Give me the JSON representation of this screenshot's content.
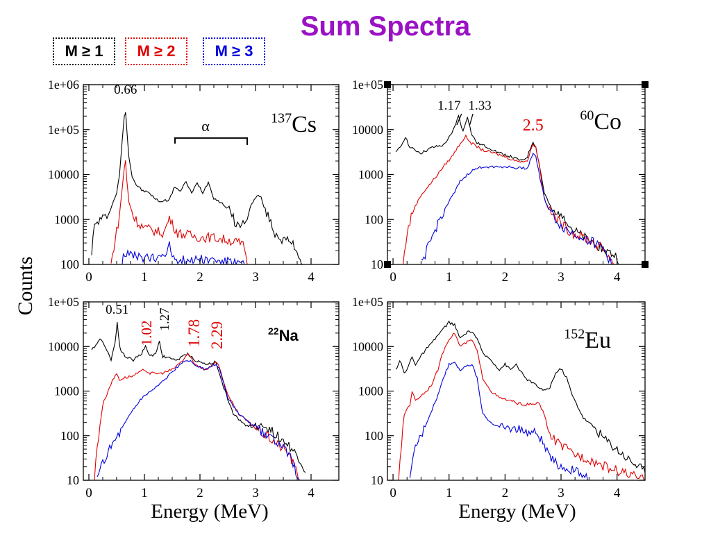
{
  "title": "Sum Spectra",
  "legend": [
    {
      "label": "M ≥ 1",
      "color": "#000000"
    },
    {
      "label": "M ≥ 2",
      "color": "#e00000"
    },
    {
      "label": "M ≥ 3",
      "color": "#0000dd"
    }
  ],
  "ylabel": "Counts",
  "xlabel": "Energy (MeV)",
  "chart_data": [
    {
      "type": "line",
      "scale": "log",
      "isotope_mass": "137",
      "isotope": "Cs",
      "xlim": [
        -0.1,
        4.5
      ],
      "ylim": [
        100,
        1000000
      ],
      "xticks": [
        "0",
        "1",
        "2",
        "3",
        "4"
      ],
      "yticks": [
        "100",
        "1000",
        "10000",
        "1e+05",
        "1e+06"
      ],
      "annotations": [
        {
          "text": "0.66",
          "x": 0.66,
          "color": "#000000"
        },
        {
          "text": "α",
          "x": 2.2,
          "color": "#000000"
        }
      ],
      "series": [
        {
          "color": "#000000",
          "x": [
            0.05,
            0.1,
            0.2,
            0.3,
            0.4,
            0.5,
            0.55,
            0.6,
            0.64,
            0.66,
            0.68,
            0.72,
            0.78,
            0.85,
            0.95,
            1.1,
            1.2,
            1.3,
            1.45,
            1.55,
            1.65,
            1.75,
            1.85,
            1.95,
            2.05,
            2.15,
            2.25,
            2.35,
            2.5,
            2.65,
            2.75,
            2.85,
            2.95,
            3.05,
            3.1,
            3.15,
            3.25,
            3.35,
            3.5,
            3.65,
            3.75,
            3.85
          ],
          "y": [
            200,
            700,
            1000,
            1100,
            1800,
            4000,
            9000,
            60000,
            200000,
            250000,
            120000,
            25000,
            9000,
            6000,
            4500,
            3800,
            2800,
            2500,
            2800,
            5500,
            4200,
            7000,
            3800,
            6500,
            4000,
            6800,
            3000,
            2500,
            1800,
            800,
            700,
            1200,
            2500,
            3500,
            3000,
            2000,
            1000,
            500,
            350,
            300,
            200,
            100
          ]
        },
        {
          "color": "#e00000",
          "x": [
            0.4,
            0.45,
            0.55,
            0.6,
            0.64,
            0.66,
            0.68,
            0.72,
            0.8,
            0.9,
            1.0,
            1.1,
            1.2,
            1.35,
            1.45,
            1.5,
            1.6,
            1.8,
            2.0,
            2.2,
            2.5,
            2.7,
            2.8,
            2.85
          ],
          "y": [
            100,
            250,
            1200,
            5000,
            15000,
            20000,
            8000,
            2500,
            1200,
            800,
            650,
            600,
            550,
            500,
            1100,
            800,
            500,
            450,
            400,
            400,
            350,
            300,
            250,
            100
          ]
        },
        {
          "color": "#0000dd",
          "x": [
            0.6,
            0.62,
            0.7,
            0.8,
            1.0,
            1.2,
            1.4,
            1.45,
            1.5,
            1.6,
            1.8,
            2.0,
            2.2,
            2.4,
            2.6,
            2.8
          ],
          "y": [
            100,
            180,
            170,
            150,
            140,
            130,
            200,
            260,
            170,
            130,
            120,
            140,
            125,
            120,
            110,
            100
          ]
        }
      ]
    },
    {
      "type": "line",
      "scale": "log",
      "isotope_mass": "60",
      "isotope": "Co",
      "xlim": [
        -0.1,
        4.5
      ],
      "ylim": [
        10,
        100000
      ],
      "xticks": [
        "0",
        "1",
        "2",
        "3",
        "4"
      ],
      "yticks": [
        "10",
        "100",
        "1000",
        "10000",
        "1e+05"
      ],
      "annotations": [
        {
          "text": "1.17",
          "x": 1.17,
          "color": "#000000"
        },
        {
          "text": "1.33",
          "x": 1.33,
          "color": "#000000"
        },
        {
          "text": "2.5",
          "x": 2.5,
          "color": "#e00000"
        }
      ],
      "series": [
        {
          "color": "#000000",
          "x": [
            0.05,
            0.15,
            0.22,
            0.3,
            0.5,
            0.7,
            0.9,
            1.05,
            1.17,
            1.25,
            1.33,
            1.4,
            1.5,
            1.7,
            1.9,
            2.1,
            2.3,
            2.4,
            2.5,
            2.55,
            2.6,
            2.7,
            2.8,
            2.9,
            3.0,
            3.1,
            3.2,
            3.4,
            3.6,
            3.8,
            4.0,
            4.05
          ],
          "y": [
            3000,
            4500,
            7000,
            4000,
            3000,
            4000,
            4500,
            8000,
            20000,
            9000,
            20000,
            8000,
            5000,
            4000,
            3000,
            2500,
            2000,
            2500,
            5500,
            4000,
            2000,
            400,
            200,
            120,
            150,
            100,
            60,
            40,
            30,
            20,
            15,
            10
          ]
        },
        {
          "color": "#e00000",
          "x": [
            0.18,
            0.25,
            0.35,
            0.5,
            0.7,
            0.9,
            1.05,
            1.2,
            1.3,
            1.4,
            1.6,
            1.8,
            2.0,
            2.2,
            2.4,
            2.5,
            2.55,
            2.6,
            2.7,
            2.8,
            3.0,
            3.2,
            3.4,
            3.6,
            3.8,
            3.95
          ],
          "y": [
            10,
            50,
            150,
            350,
            700,
            1500,
            2500,
            5000,
            7000,
            5000,
            3500,
            3000,
            2500,
            2000,
            2000,
            5000,
            4000,
            2000,
            300,
            150,
            80,
            50,
            40,
            30,
            20,
            10
          ]
        },
        {
          "color": "#0000dd",
          "x": [
            0.5,
            0.6,
            0.7,
            0.8,
            0.9,
            1.0,
            1.1,
            1.2,
            1.4,
            1.6,
            1.8,
            2.0,
            2.2,
            2.4,
            2.5,
            2.55,
            2.6,
            2.7,
            2.8,
            3.0,
            3.2,
            3.4,
            3.6,
            3.8,
            3.9
          ],
          "y": [
            10,
            20,
            40,
            80,
            150,
            250,
            400,
            700,
            1200,
            1500,
            1500,
            1500,
            1400,
            1400,
            3000,
            2500,
            1200,
            300,
            150,
            70,
            50,
            40,
            30,
            20,
            10
          ]
        }
      ]
    },
    {
      "type": "line",
      "scale": "log",
      "isotope_mass": "22",
      "isotope": "Na",
      "xlim": [
        -0.1,
        4.5
      ],
      "ylim": [
        10,
        100000
      ],
      "xticks": [
        "0",
        "1",
        "2",
        "3",
        "4"
      ],
      "yticks": [
        "10",
        "100",
        "1000",
        "10000",
        "1e+05"
      ],
      "annotations": [
        {
          "text": "0.51",
          "x": 0.51,
          "color": "#000000"
        },
        {
          "text": "1.02",
          "x": 1.02,
          "color": "#e00000"
        },
        {
          "text": "1.27",
          "x": 1.27,
          "color": "#000000"
        },
        {
          "text": "1.78",
          "x": 1.78,
          "color": "#e00000"
        },
        {
          "text": "2.29",
          "x": 2.29,
          "color": "#e00000"
        }
      ],
      "series": [
        {
          "color": "#000000",
          "x": [
            0.05,
            0.1,
            0.2,
            0.3,
            0.4,
            0.47,
            0.51,
            0.56,
            0.65,
            0.8,
            0.95,
            1.02,
            1.1,
            1.2,
            1.27,
            1.33,
            1.45,
            1.6,
            1.78,
            1.9,
            2.1,
            2.29,
            2.4,
            2.6,
            2.8,
            3.0,
            3.1,
            3.2,
            3.4,
            3.6,
            3.8,
            3.9
          ],
          "y": [
            8000,
            10000,
            15000,
            10000,
            5000,
            12000,
            35000,
            9000,
            6000,
            5000,
            7000,
            10000,
            6000,
            7000,
            13000,
            6000,
            5500,
            5000,
            7000,
            5000,
            4000,
            4500,
            1500,
            300,
            180,
            150,
            180,
            150,
            100,
            60,
            30,
            15
          ]
        },
        {
          "color": "#e00000",
          "x": [
            0.1,
            0.15,
            0.25,
            0.4,
            0.5,
            0.55,
            0.65,
            0.8,
            1.0,
            1.1,
            1.3,
            1.5,
            1.7,
            1.78,
            1.9,
            2.1,
            2.29,
            2.35,
            2.5,
            2.7,
            3.0,
            3.3,
            3.6,
            3.8
          ],
          "y": [
            10,
            60,
            500,
            1500,
            2500,
            1800,
            2000,
            2200,
            3000,
            2500,
            2500,
            3000,
            5000,
            7000,
            4000,
            3000,
            4500,
            3500,
            800,
            300,
            150,
            80,
            40,
            10
          ]
        },
        {
          "color": "#0000dd",
          "x": [
            0.15,
            0.25,
            0.4,
            0.6,
            0.8,
            1.0,
            1.2,
            1.4,
            1.6,
            1.78,
            1.9,
            2.1,
            2.29,
            2.35,
            2.5,
            2.7,
            3.0,
            3.3,
            3.6,
            3.8
          ],
          "y": [
            10,
            25,
            60,
            150,
            400,
            800,
            1200,
            2000,
            3500,
            5000,
            4000,
            3000,
            4000,
            3200,
            700,
            300,
            150,
            80,
            40,
            10
          ]
        }
      ]
    },
    {
      "type": "line",
      "scale": "log",
      "isotope_mass": "152",
      "isotope": "Eu",
      "xlim": [
        -0.1,
        4.5
      ],
      "ylim": [
        10,
        100000
      ],
      "xticks": [
        "0",
        "1",
        "2",
        "3",
        "4"
      ],
      "yticks": [
        "10",
        "100",
        "1000",
        "10000",
        "1e+05"
      ],
      "annotations": [],
      "series": [
        {
          "color": "#000000",
          "x": [
            0.05,
            0.12,
            0.2,
            0.25,
            0.34,
            0.4,
            0.5,
            0.6,
            0.7,
            0.8,
            0.9,
            1.0,
            1.1,
            1.2,
            1.3,
            1.41,
            1.5,
            1.6,
            1.75,
            1.9,
            2.0,
            2.1,
            2.2,
            2.35,
            2.5,
            2.7,
            2.8,
            2.9,
            3.0,
            3.1,
            3.2,
            3.4,
            3.6,
            3.8,
            4.0,
            4.2,
            4.4,
            4.5
          ],
          "y": [
            3000,
            5000,
            2500,
            3000,
            6000,
            4000,
            6000,
            9000,
            12000,
            18000,
            25000,
            35000,
            30000,
            15000,
            20000,
            22000,
            15000,
            7000,
            5000,
            3000,
            4000,
            3000,
            4000,
            2000,
            1500,
            1000,
            1200,
            2500,
            3200,
            2000,
            800,
            250,
            150,
            80,
            50,
            30,
            20,
            15
          ]
        },
        {
          "color": "#e00000",
          "x": [
            0.1,
            0.2,
            0.25,
            0.3,
            0.34,
            0.4,
            0.5,
            0.6,
            0.7,
            0.8,
            0.9,
            1.0,
            1.1,
            1.2,
            1.3,
            1.41,
            1.5,
            1.6,
            1.75,
            1.9,
            2.1,
            2.3,
            2.5,
            2.6,
            2.7,
            2.8,
            3.0,
            3.2,
            3.5,
            3.8,
            4.1,
            4.5
          ],
          "y": [
            10,
            300,
            400,
            500,
            1000,
            600,
            800,
            1000,
            1500,
            3000,
            8000,
            15000,
            20000,
            10000,
            12000,
            14000,
            8000,
            2000,
            1000,
            700,
            600,
            500,
            500,
            550,
            300,
            100,
            60,
            40,
            30,
            20,
            15,
            10
          ]
        },
        {
          "color": "#0000dd",
          "x": [
            0.3,
            0.4,
            0.5,
            0.6,
            0.7,
            0.8,
            0.9,
            1.0,
            1.1,
            1.2,
            1.3,
            1.41,
            1.5,
            1.6,
            1.75,
            1.9,
            2.1,
            2.3,
            2.5,
            2.6,
            2.7,
            2.8,
            3.0,
            3.3,
            3.5
          ],
          "y": [
            10,
            60,
            100,
            200,
            400,
            800,
            2000,
            4000,
            4500,
            3000,
            3500,
            4000,
            2000,
            300,
            200,
            150,
            150,
            130,
            120,
            110,
            60,
            30,
            20,
            15,
            10
          ]
        }
      ]
    }
  ]
}
